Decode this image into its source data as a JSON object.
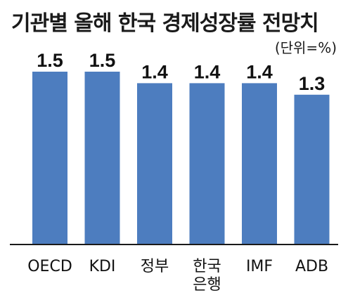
{
  "chart_data": {
    "type": "bar",
    "title": "기관별 올해 한국 경제성장률 전망치",
    "unit_note": "(단위=%)",
    "categories": [
      "OECD",
      "KDI",
      "정부",
      "한국\n은행",
      "IMF",
      "ADB"
    ],
    "values": [
      1.5,
      1.5,
      1.4,
      1.4,
      1.4,
      1.3
    ],
    "value_labels": [
      "1.5",
      "1.5",
      "1.4",
      "1.4",
      "1.4",
      "1.3"
    ],
    "xlabel": "",
    "ylabel": "",
    "ylim": [
      0,
      1.5
    ],
    "grid": false,
    "legend": "none",
    "bar_color": "#4d7dbf",
    "baseline_color": "#1a1a1a"
  }
}
